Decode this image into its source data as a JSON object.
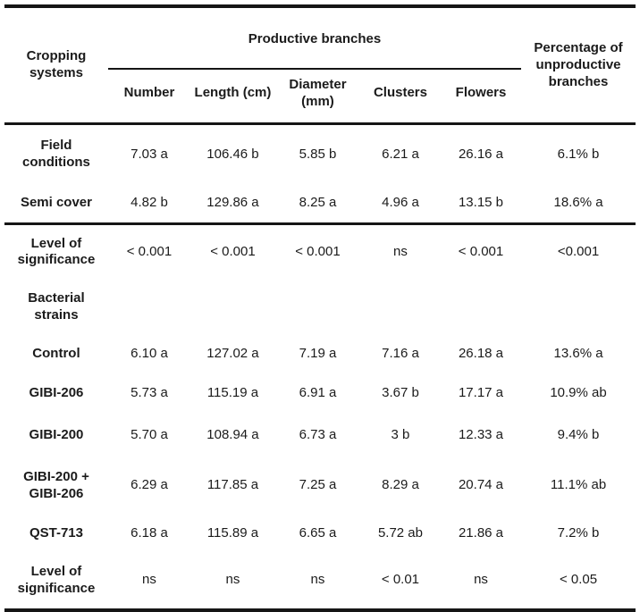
{
  "table": {
    "header": {
      "cropping_systems": "Cropping systems",
      "productive_branches": "Productive branches",
      "percentage_unproductive": "Percentage of unproductive branches",
      "subcolumns": [
        "Number",
        "Length (cm)",
        "Diameter (mm)",
        "Clusters",
        "Flowers"
      ]
    },
    "rows": [
      {
        "label": "Field conditions",
        "values": [
          "7.03 a",
          "106.46 b",
          "5.85 b",
          "6.21 a",
          "26.16 a",
          "6.1% b"
        ]
      },
      {
        "label": "Semi cover",
        "values": [
          "4.82 b",
          "129.86 a",
          "8.25 a",
          "4.96 a",
          "13.15 b",
          "18.6% a"
        ]
      },
      {
        "label": "Level of significance",
        "values": [
          "< 0.001",
          "< 0.001",
          "< 0.001",
          "ns",
          "< 0.001",
          "<0.001"
        ]
      },
      {
        "label": "Bacterial strains",
        "values": [
          "",
          "",
          "",
          "",
          "",
          ""
        ]
      },
      {
        "label": "Control",
        "values": [
          "6.10 a",
          "127.02 a",
          "7.19 a",
          "7.16 a",
          "26.18 a",
          "13.6% a"
        ]
      },
      {
        "label": "GIBI-206",
        "values": [
          "5.73 a",
          "115.19 a",
          "6.91 a",
          "3.67 b",
          "17.17 a",
          "10.9% ab"
        ]
      },
      {
        "label": "GIBI-200",
        "values": [
          "5.70 a",
          "108.94 a",
          "6.73 a",
          "3 b",
          "12.33 a",
          "9.4% b"
        ]
      },
      {
        "label": "GIBI-200 + GIBI-206",
        "values": [
          "6.29 a",
          "117.85 a",
          "7.25 a",
          "8.29 a",
          "20.74 a",
          "11.1% ab"
        ]
      },
      {
        "label": "QST-713",
        "values": [
          "6.18 a",
          "115.89 a",
          "6.65 a",
          "5.72 ab",
          "21.86 a",
          "7.2% b"
        ]
      },
      {
        "label": "Level of significance",
        "values": [
          "ns",
          "ns",
          "ns",
          "< 0.01",
          "ns",
          "< 0.05"
        ]
      }
    ],
    "colors": {
      "text": "#1b1b1b",
      "rule": "#151515",
      "background": "#ffffff"
    }
  }
}
